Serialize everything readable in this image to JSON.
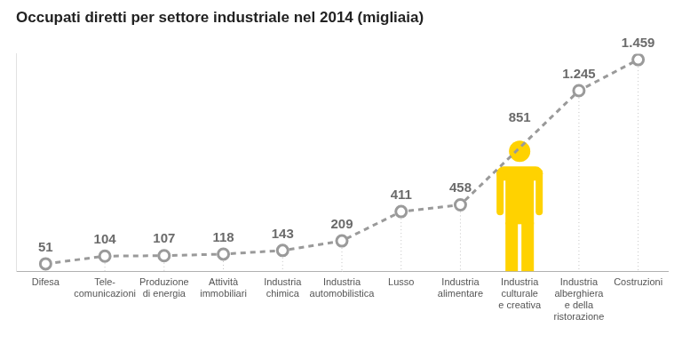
{
  "chart_data": {
    "type": "line",
    "title": "Occupati diretti per settore industriale nel 2014 (migliaia)",
    "categories": [
      "Difesa",
      "Tele-\ncomunicazioni",
      "Produzione\ndi energia",
      "Attività\nimmobiliari",
      "Industria\nchimica",
      "Industria\nautomobilistica",
      "Lusso",
      "Industria\nalimentare",
      "Industria\nculturale\ne creativa",
      "Industria\nalberghiera\ne della\nristorazione",
      "Costruzioni"
    ],
    "values": [
      51,
      104,
      107,
      118,
      143,
      209,
      411,
      458,
      851,
      1245,
      1459
    ],
    "value_labels": [
      "51",
      "104",
      "107",
      "118",
      "143",
      "209",
      "411",
      "458",
      "851",
      "1.245",
      "1.459"
    ],
    "color": "#9a9a9a",
    "colors": [
      "#9a9a9a",
      "#9a9a9a",
      "#9a9a9a",
      "#9a9a9a",
      "#9a9a9a",
      "#9a9a9a",
      "#9a9a9a",
      "#9a9a9a",
      "#ffd200",
      "#9a9a9a",
      "#9a9a9a"
    ],
    "line_style": "dashed",
    "marker": "circle",
    "ylim": [
      0,
      1500
    ],
    "grid": false,
    "data_labels": true,
    "tick_labels": "x"
  }
}
